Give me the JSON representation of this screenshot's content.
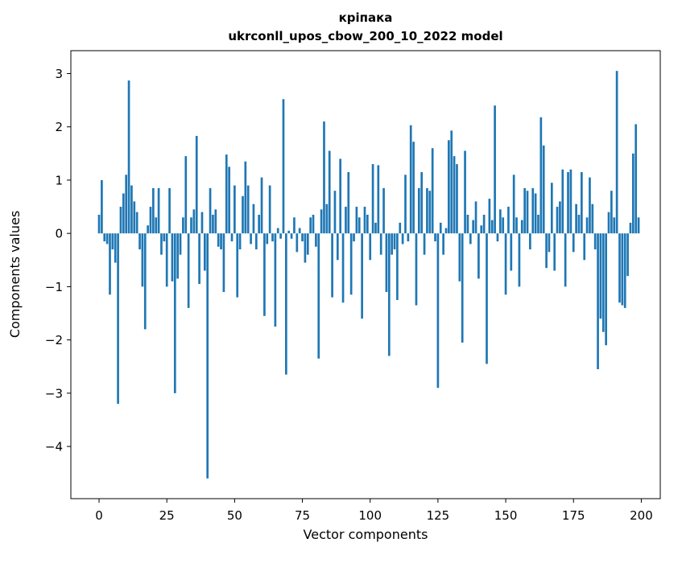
{
  "chart_data": {
    "type": "bar",
    "title_line1": "кріпака",
    "title_line2": "ukrconll_upos_cbow_200_10_2022 model",
    "xlabel": "Vector components",
    "ylabel": "Components values",
    "xlim": [
      -10.4,
      207
    ],
    "ylim": [
      -4.98,
      3.43
    ],
    "xticks": [
      0,
      25,
      50,
      75,
      100,
      125,
      150,
      175,
      200
    ],
    "yticks": [
      -4,
      -3,
      -2,
      -1,
      0,
      1,
      2,
      3
    ],
    "bar_color": "#1f77b4",
    "bar_width": 0.8,
    "values": [
      0.35,
      1.0,
      -0.15,
      -0.2,
      -1.15,
      -0.3,
      -0.55,
      -3.2,
      0.5,
      0.75,
      1.1,
      2.87,
      0.9,
      0.6,
      0.4,
      -0.3,
      -1.0,
      -1.8,
      0.15,
      0.5,
      0.85,
      0.3,
      0.85,
      -0.4,
      -0.15,
      -1.0,
      0.85,
      -0.9,
      -3.0,
      -0.85,
      -0.4,
      0.3,
      1.45,
      -1.4,
      0.3,
      0.45,
      1.83,
      -0.95,
      0.4,
      -0.7,
      -4.6,
      0.85,
      0.35,
      0.45,
      -0.25,
      -0.3,
      -1.1,
      1.48,
      1.25,
      -0.15,
      0.9,
      -1.2,
      -0.3,
      0.7,
      1.35,
      0.9,
      -0.2,
      0.55,
      -0.3,
      0.35,
      1.05,
      -1.55,
      -0.2,
      0.9,
      -0.15,
      -1.75,
      0.1,
      -0.1,
      2.52,
      -2.65,
      0.05,
      -0.1,
      0.3,
      -0.35,
      0.1,
      -0.15,
      -0.55,
      -0.4,
      0.3,
      0.35,
      -0.25,
      -2.35,
      0.45,
      2.1,
      0.55,
      1.55,
      -1.2,
      0.8,
      -0.5,
      1.4,
      -1.3,
      0.5,
      1.15,
      -1.15,
      -0.15,
      0.5,
      0.3,
      -1.6,
      0.5,
      0.35,
      -0.5,
      1.3,
      0.2,
      1.28,
      -0.4,
      0.85,
      -1.1,
      -2.3,
      -0.4,
      -0.3,
      -1.25,
      0.2,
      -0.2,
      1.1,
      -0.15,
      2.03,
      1.72,
      -1.35,
      0.85,
      1.15,
      -0.4,
      0.85,
      0.8,
      1.6,
      -0.15,
      -2.9,
      0.2,
      -0.4,
      0.1,
      1.75,
      1.93,
      1.45,
      1.3,
      -0.9,
      -2.05,
      1.55,
      0.35,
      -0.2,
      0.25,
      0.6,
      -0.85,
      0.15,
      0.35,
      -2.45,
      0.65,
      0.25,
      2.4,
      -0.15,
      0.45,
      0.3,
      -1.15,
      0.5,
      -0.7,
      1.1,
      0.3,
      -1.0,
      0.25,
      0.85,
      0.8,
      -0.3,
      0.85,
      0.75,
      0.35,
      2.18,
      1.65,
      -0.65,
      -0.35,
      0.95,
      -0.7,
      0.5,
      0.6,
      1.2,
      -1.0,
      1.15,
      1.2,
      -0.35,
      0.55,
      0.35,
      1.15,
      -0.5,
      0.3,
      1.05,
      0.55,
      -0.3,
      -2.55,
      -1.6,
      -1.85,
      -2.1,
      0.4,
      0.8,
      0.3,
      3.05,
      -1.3,
      -1.35,
      -1.4,
      -0.8,
      0.2,
      1.5,
      2.05,
      0.3
    ]
  }
}
